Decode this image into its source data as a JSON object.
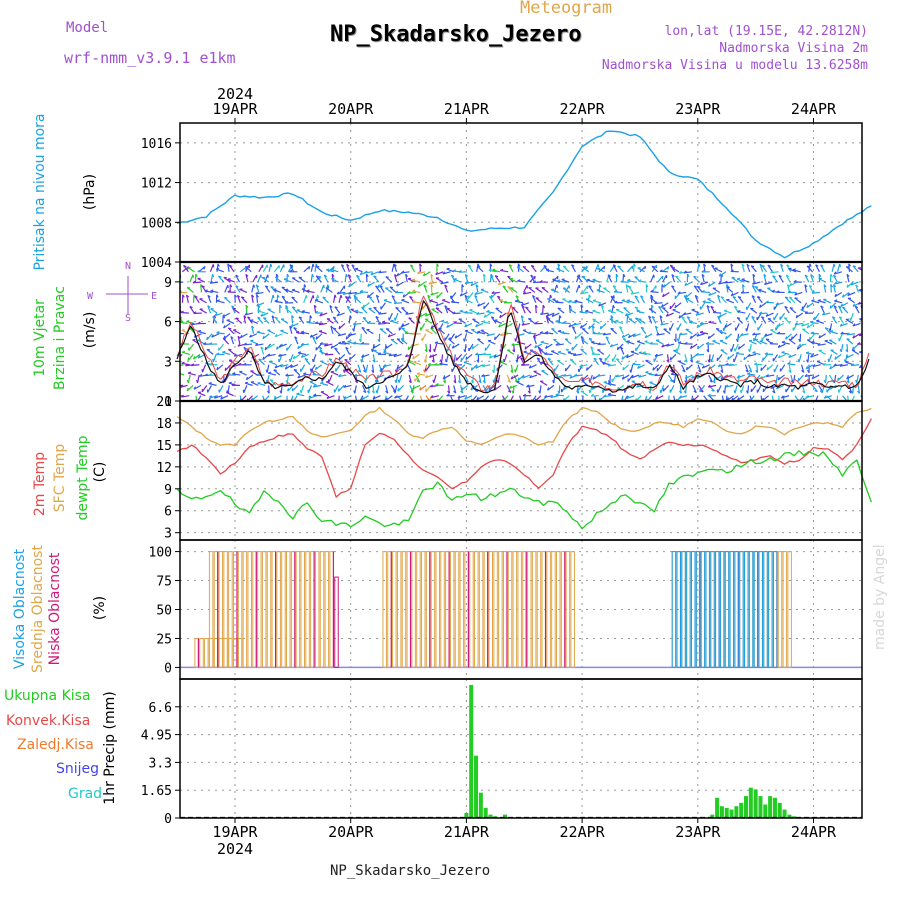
{
  "header": {
    "subtitle": "Meteogram",
    "title": "NP_Skadarsko_Jezero",
    "model_label": "Model",
    "model_name": "wrf-nmm_v3.9.1 e1km",
    "coords": "lon,lat (19.15E, 42.2812N)",
    "elevation": "Nadmorska Visina 2m",
    "model_elevation": "Nadmorska Visina u modelu 13.6258m"
  },
  "footer": {
    "station": "NP_Skadarsko_Jezero",
    "credit": "made by Angel"
  },
  "time_axis": {
    "year": "2024",
    "days": [
      "19APR",
      "20APR",
      "21APR",
      "22APR",
      "23APR",
      "24APR"
    ]
  },
  "colors": {
    "pressure": "#1ba1e6",
    "temp2m": "#e84848",
    "sfc_temp": "#e0a64a",
    "dewpt": "#22cc22",
    "high_cloud": "#1ba1e6",
    "mid_cloud": "#e0a64a",
    "low_cloud": "#d0187a",
    "total_precip": "#22cc22",
    "conv_precip": "#e84848",
    "frozen_precip": "#f07a2a",
    "snow": "#4444ee",
    "graupel": "#22c8c8",
    "wind_speed": "#111111",
    "wind_gust": "#e84848"
  },
  "panels": {
    "pressure": {
      "labels": [
        "Pritisak na nivou mora"
      ],
      "unit": "(hPa)",
      "ticks": [
        "1004",
        "1008",
        "1012",
        "1016"
      ]
    },
    "wind": {
      "labels": [
        "10m Vjetar",
        "Brzina i Pravac"
      ],
      "unit": "(m/s)",
      "ticks": [
        "0",
        "3",
        "6",
        "9"
      ],
      "compass": [
        "N",
        "S",
        "W",
        "E"
      ]
    },
    "temp": {
      "labels": [
        "2m Temp",
        "SFC Temp",
        "dewpt Temp"
      ],
      "unit": "(C)",
      "ticks": [
        "3",
        "6",
        "9",
        "12",
        "15",
        "18",
        "21"
      ]
    },
    "cloud": {
      "labels": [
        "Visoka Oblacnost",
        "Srednja Oblacnost",
        "Niska Oblacnost"
      ],
      "unit": "(%)",
      "ticks": [
        "0",
        "25",
        "50",
        "75",
        "100"
      ]
    },
    "precip": {
      "legend": [
        "Ukupna Kisa",
        "Konvek.Kisa",
        "Zaledj.Kisa",
        "Snijeg",
        "Grad"
      ],
      "unit": "1hr Precip (mm)",
      "ticks": [
        "0",
        "1.65",
        "3.3",
        "4.95",
        "6.6"
      ]
    }
  },
  "chart_data": [
    {
      "type": "line",
      "name": "pressure",
      "ylabel": "(hPa)",
      "ylim": [
        1004,
        1018
      ],
      "x_unit": "hours from 19APR 00:00",
      "x": [
        -12,
        -6,
        0,
        6,
        12,
        18,
        24,
        30,
        36,
        42,
        48,
        54,
        60,
        66,
        72,
        78,
        84,
        90,
        96,
        102,
        108,
        114,
        120,
        126,
        132
      ],
      "y": [
        1007.9,
        1008.6,
        1010.7,
        1010.5,
        1010.9,
        1009.0,
        1008.2,
        1009.2,
        1009.0,
        1008.5,
        1007.1,
        1007.4,
        1007.5,
        1011.0,
        1015.7,
        1017.3,
        1016.6,
        1013.0,
        1012.3,
        1009.5,
        1006.2,
        1004.5,
        1005.9,
        1007.9,
        1009.6
      ],
      "grid": true
    },
    {
      "type": "line",
      "name": "wind",
      "ylabel": "(m/s)",
      "ylim": [
        0,
        10.5
      ],
      "x": [
        -12,
        -9,
        -6,
        -3,
        0,
        3,
        6,
        9,
        12,
        15,
        18,
        21,
        24,
        27,
        30,
        33,
        36,
        39,
        42,
        45,
        48,
        51,
        54,
        57,
        60,
        63,
        66,
        69,
        72,
        75,
        78,
        81,
        84,
        87,
        90,
        93,
        96,
        99,
        102,
        105,
        108,
        111,
        114,
        117,
        120,
        123,
        126,
        129,
        132
      ],
      "series": [
        {
          "values": [
            3.2,
            5.8,
            3.0,
            1.2,
            2.8,
            3.8,
            1.3,
            1.0,
            1.1,
            1.8,
            1.6,
            3.0,
            2.2,
            1.0,
            1.5,
            1.8,
            2.6,
            7.8,
            5.2,
            3.0,
            1.5,
            0.7,
            0.9,
            7.2,
            3.0,
            3.5,
            2.0,
            1.0,
            1.0,
            1.2,
            0.8,
            0.9,
            1.2,
            0.8,
            2.8,
            1.0,
            1.8,
            2.0,
            1.5,
            1.2,
            1.5,
            1.0,
            1.2,
            1.0,
            1.3,
            1.0,
            1.2,
            1.0,
            3.5
          ]
        },
        {
          "values": [
            3.5,
            6.0,
            3.5,
            1.5,
            3.0,
            4.2,
            1.5,
            1.2,
            1.4,
            2.0,
            2.0,
            3.2,
            2.5,
            1.5,
            2.0,
            2.0,
            3.0,
            8.0,
            5.5,
            3.3,
            2.0,
            1.0,
            1.2,
            7.5,
            3.2,
            3.8,
            2.2,
            1.3,
            1.5,
            1.5,
            1.0,
            1.1,
            1.5,
            1.0,
            3.0,
            1.3,
            2.0,
            2.3,
            1.8,
            1.5,
            1.8,
            1.2,
            1.5,
            1.3,
            1.5,
            1.3,
            1.5,
            1.2,
            3.8
          ]
        }
      ]
    },
    {
      "type": "line",
      "name": "temperature",
      "ylabel": "(C)",
      "ylim": [
        2,
        21
      ],
      "x": [
        -12,
        -9,
        -6,
        -3,
        0,
        3,
        6,
        9,
        12,
        15,
        18,
        21,
        24,
        27,
        30,
        33,
        36,
        39,
        42,
        45,
        48,
        51,
        54,
        57,
        60,
        63,
        66,
        69,
        72,
        75,
        78,
        81,
        84,
        87,
        90,
        93,
        96,
        99,
        102,
        105,
        108,
        111,
        114,
        117,
        120,
        123,
        126,
        129,
        132
      ],
      "series": [
        {
          "values": [
            14.0,
            15.0,
            13.3,
            11.1,
            12.5,
            14.8,
            15.5,
            16.2,
            16.5,
            14.5,
            13.5,
            8.0,
            9.0,
            15.1,
            16.6,
            15.8,
            13.5,
            11.5,
            10.5,
            9.0,
            10.0,
            12.0,
            13.0,
            12.5,
            11.0,
            9.0,
            11.0,
            15.0,
            17.5,
            17.0,
            16.0,
            14.0,
            13.0,
            14.5,
            15.5,
            15.0,
            15.0,
            14.5,
            13.5,
            12.5,
            13.0,
            13.5,
            12.5,
            13.0,
            14.5,
            14.5,
            13.0,
            15.0,
            18.5
          ]
        },
        {
          "values": [
            18.8,
            17.5,
            16.0,
            15.0,
            15.0,
            17.0,
            18.0,
            18.5,
            19.0,
            16.8,
            16.0,
            16.5,
            17.0,
            19.0,
            20.0,
            18.5,
            16.5,
            16.0,
            17.0,
            17.5,
            15.5,
            15.0,
            16.0,
            16.5,
            16.0,
            15.0,
            15.5,
            18.5,
            20.0,
            19.5,
            18.0,
            17.0,
            17.0,
            18.0,
            18.0,
            17.5,
            18.5,
            18.0,
            17.0,
            16.5,
            17.5,
            17.5,
            16.5,
            17.5,
            18.0,
            18.0,
            17.5,
            19.5,
            20.0
          ]
        },
        {
          "values": [
            8.6,
            7.4,
            8.0,
            9.0,
            6.8,
            5.4,
            8.6,
            7.5,
            5.2,
            7.0,
            4.8,
            4.2,
            4.0,
            5.2,
            4.2,
            4.0,
            4.5,
            8.8,
            9.7,
            7.2,
            8.5,
            7.7,
            8.2,
            8.9,
            8.0,
            7.0,
            7.2,
            6.0,
            3.5,
            5.5,
            7.0,
            8.5,
            6.8,
            6.0,
            9.5,
            10.5,
            11.0,
            12.0,
            11.5,
            12.2,
            12.8,
            13.0,
            13.5,
            13.8,
            14.0,
            13.5,
            11.0,
            12.8,
            7.5
          ]
        }
      ]
    },
    {
      "type": "bar",
      "name": "cloud_cover",
      "ylabel": "(%)",
      "ylim": [
        0,
        100
      ],
      "x_unit": "hours from 19APR 00:00",
      "segments": [
        {
          "layer": "mid",
          "start": -8,
          "end": 1,
          "value": 25
        },
        {
          "layer": "mid",
          "start": -5,
          "end": 20,
          "value": 100
        },
        {
          "layer": "low",
          "start": 21,
          "end": 21.5,
          "value": 78
        },
        {
          "layer": "mid",
          "start": 31,
          "end": 70,
          "value": 100
        },
        {
          "layer": "mid",
          "start": 91,
          "end": 115,
          "value": 100
        },
        {
          "layer": "high",
          "start": 91,
          "end": 112,
          "value": 100
        }
      ]
    },
    {
      "type": "bar",
      "name": "precip",
      "ylabel": "1hr Precip (mm)",
      "ylim": [
        0,
        8.25
      ],
      "x_unit": "hours from 19APR 00:00",
      "x": [
        48,
        49,
        50,
        51,
        52,
        53,
        54,
        56,
        99,
        100,
        101,
        102,
        103,
        104,
        105,
        106,
        107,
        108,
        109,
        110,
        111,
        112,
        113,
        114,
        115,
        116
      ],
      "values": [
        0.3,
        7.9,
        3.7,
        1.5,
        0.6,
        0.2,
        0.1,
        0.2,
        0.2,
        1.2,
        0.7,
        0.6,
        0.5,
        0.7,
        0.9,
        1.3,
        1.8,
        1.7,
        1.3,
        0.8,
        1.3,
        1.2,
        0.9,
        0.5,
        0.2,
        0.1
      ]
    }
  ]
}
